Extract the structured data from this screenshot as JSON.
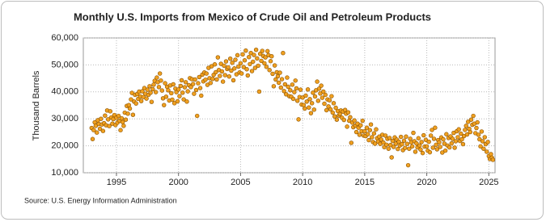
{
  "chart_data": {
    "type": "scatter",
    "title": "Monthly U.S. Imports from Mexico of Crude Oil and Petroleum Products",
    "y_label": "Thousand Barrels",
    "source": "Source: U.S. Energy Information Administration",
    "color": "#f0a020",
    "edge_color": "#8a5200",
    "grid": true,
    "xlim": [
      1992.33,
      2025.5
    ],
    "xticks": [
      1995,
      2000,
      2005,
      2010,
      2015,
      2020,
      2025
    ],
    "ylim": [
      10000,
      60000
    ],
    "yticks": [
      {
        "value": 10000,
        "label": "10,000"
      },
      {
        "value": 20000,
        "label": "20,000"
      },
      {
        "value": 30000,
        "label": "30,000"
      },
      {
        "value": 40000,
        "label": "40,000"
      },
      {
        "value": 50000,
        "label": "50,000"
      },
      {
        "value": 60000,
        "label": "60,000"
      }
    ],
    "x": [
      1993,
      1993.08,
      1993.17,
      1993.25,
      1993.33,
      1993.42,
      1993.5,
      1993.58,
      1993.67,
      1993.75,
      1993.83,
      1993.92,
      1994,
      1994.08,
      1994.17,
      1994.25,
      1994.33,
      1994.42,
      1994.5,
      1994.58,
      1994.67,
      1994.75,
      1994.83,
      1994.92,
      1995,
      1995.08,
      1995.17,
      1995.25,
      1995.33,
      1995.42,
      1995.5,
      1995.58,
      1995.67,
      1995.75,
      1995.83,
      1995.92,
      1996,
      1996.08,
      1996.17,
      1996.25,
      1996.33,
      1996.42,
      1996.5,
      1996.58,
      1996.67,
      1996.75,
      1996.83,
      1996.92,
      1997,
      1997.08,
      1997.17,
      1997.25,
      1997.33,
      1997.42,
      1997.5,
      1997.58,
      1997.67,
      1997.75,
      1997.83,
      1997.92,
      1998,
      1998.08,
      1998.17,
      1998.25,
      1998.33,
      1998.42,
      1998.5,
      1998.58,
      1998.67,
      1998.75,
      1998.83,
      1998.92,
      1999,
      1999.08,
      1999.17,
      1999.25,
      1999.33,
      1999.42,
      1999.5,
      1999.58,
      1999.67,
      1999.75,
      1999.83,
      1999.92,
      2000,
      2000.08,
      2000.17,
      2000.25,
      2000.33,
      2000.42,
      2000.5,
      2000.58,
      2000.67,
      2000.75,
      2000.83,
      2000.92,
      2001,
      2001.08,
      2001.17,
      2001.25,
      2001.33,
      2001.42,
      2001.5,
      2001.58,
      2001.67,
      2001.75,
      2001.83,
      2001.92,
      2002,
      2002.08,
      2002.17,
      2002.25,
      2002.33,
      2002.42,
      2002.5,
      2002.58,
      2002.67,
      2002.75,
      2002.83,
      2002.92,
      2003,
      2003.08,
      2003.17,
      2003.25,
      2003.33,
      2003.42,
      2003.5,
      2003.58,
      2003.67,
      2003.75,
      2003.83,
      2003.92,
      2004,
      2004.08,
      2004.17,
      2004.25,
      2004.33,
      2004.42,
      2004.5,
      2004.58,
      2004.67,
      2004.75,
      2004.83,
      2004.92,
      2005,
      2005.08,
      2005.17,
      2005.25,
      2005.33,
      2005.42,
      2005.5,
      2005.58,
      2005.67,
      2005.75,
      2005.83,
      2005.92,
      2006,
      2006.08,
      2006.17,
      2006.25,
      2006.33,
      2006.42,
      2006.5,
      2006.58,
      2006.67,
      2006.75,
      2006.83,
      2006.92,
      2007,
      2007.08,
      2007.17,
      2007.25,
      2007.33,
      2007.42,
      2007.5,
      2007.58,
      2007.67,
      2007.75,
      2007.83,
      2007.92,
      2008,
      2008.08,
      2008.17,
      2008.25,
      2008.33,
      2008.42,
      2008.5,
      2008.58,
      2008.67,
      2008.75,
      2008.83,
      2008.92,
      2009,
      2009.08,
      2009.17,
      2009.25,
      2009.33,
      2009.42,
      2009.5,
      2009.58,
      2009.67,
      2009.75,
      2009.83,
      2009.92,
      2010,
      2010.08,
      2010.17,
      2010.25,
      2010.33,
      2010.42,
      2010.5,
      2010.58,
      2010.67,
      2010.75,
      2010.83,
      2010.92,
      2011,
      2011.08,
      2011.17,
      2011.25,
      2011.33,
      2011.42,
      2011.5,
      2011.58,
      2011.67,
      2011.75,
      2011.83,
      2011.92,
      2012,
      2012.08,
      2012.17,
      2012.25,
      2012.33,
      2012.42,
      2012.5,
      2012.58,
      2012.67,
      2012.75,
      2012.83,
      2012.92,
      2013,
      2013.08,
      2013.17,
      2013.25,
      2013.33,
      2013.42,
      2013.5,
      2013.58,
      2013.67,
      2013.75,
      2013.83,
      2013.92,
      2014,
      2014.08,
      2014.17,
      2014.25,
      2014.33,
      2014.42,
      2014.5,
      2014.58,
      2014.67,
      2014.75,
      2014.83,
      2014.92,
      2015,
      2015.08,
      2015.17,
      2015.25,
      2015.33,
      2015.42,
      2015.5,
      2015.58,
      2015.67,
      2015.75,
      2015.83,
      2015.92,
      2016,
      2016.08,
      2016.17,
      2016.25,
      2016.33,
      2016.42,
      2016.5,
      2016.58,
      2016.67,
      2016.75,
      2016.83,
      2016.92,
      2017,
      2017.08,
      2017.17,
      2017.25,
      2017.33,
      2017.42,
      2017.5,
      2017.58,
      2017.67,
      2017.75,
      2017.83,
      2017.92,
      2018,
      2018.08,
      2018.17,
      2018.25,
      2018.33,
      2018.42,
      2018.5,
      2018.58,
      2018.67,
      2018.75,
      2018.83,
      2018.92,
      2019,
      2019.08,
      2019.17,
      2019.25,
      2019.33,
      2019.42,
      2019.5,
      2019.58,
      2019.67,
      2019.75,
      2019.83,
      2019.92,
      2020,
      2020.08,
      2020.17,
      2020.25,
      2020.33,
      2020.42,
      2020.5,
      2020.58,
      2020.67,
      2020.75,
      2020.83,
      2020.92,
      2021,
      2021.08,
      2021.17,
      2021.25,
      2021.33,
      2021.42,
      2021.5,
      2021.58,
      2021.67,
      2021.75,
      2021.83,
      2021.92,
      2022,
      2022.08,
      2022.17,
      2022.25,
      2022.33,
      2022.42,
      2022.5,
      2022.58,
      2022.67,
      2022.75,
      2022.83,
      2022.92,
      2023,
      2023.08,
      2023.17,
      2023.25,
      2023.33,
      2023.42,
      2023.5,
      2023.58,
      2023.67,
      2023.75,
      2023.83,
      2023.92,
      2024,
      2024.08,
      2024.17,
      2024.25,
      2024.33,
      2024.42,
      2024.5,
      2024.58,
      2024.67,
      2024.75,
      2024.83,
      2024.92,
      2025,
      2025.08,
      2025.17,
      2025.25,
      2025.33
    ],
    "values": [
      26600,
      22500,
      25800,
      28700,
      27400,
      24900,
      29500,
      28100,
      26300,
      30000,
      27900,
      25500,
      28400,
      31200,
      27600,
      33100,
      29800,
      27300,
      32800,
      30500,
      28200,
      29900,
      31400,
      27700,
      30400,
      28600,
      31100,
      29300,
      25800,
      30200,
      28800,
      27400,
      32300,
      29700,
      34800,
      31900,
      35100,
      33800,
      37200,
      39600,
      31500,
      36400,
      38900,
      35700,
      39200,
      37400,
      40100,
      38300,
      36600,
      40200,
      38100,
      41400,
      39300,
      37500,
      40800,
      38900,
      42100,
      39700,
      36300,
      41000,
      42700,
      44100,
      39900,
      45300,
      43600,
      41800,
      46800,
      44200,
      40500,
      37600,
      35100,
      43200,
      38200,
      41900,
      40600,
      36800,
      42400,
      39500,
      37100,
      42800,
      35800,
      41200,
      39900,
      36500,
      40900,
      38400,
      42200,
      44300,
      39700,
      37200,
      41700,
      43600,
      36400,
      40200,
      42500,
      45100,
      41800,
      44700,
      42900,
      39300,
      44600,
      40700,
      31100,
      43200,
      45500,
      41400,
      38600,
      46400,
      43900,
      47200,
      44500,
      46800,
      42600,
      48900,
      45100,
      43300,
      49500,
      44800,
      46300,
      50200,
      47300,
      44600,
      52800,
      48100,
      45900,
      50400,
      47600,
      43800,
      49700,
      46200,
      51300,
      48500,
      49100,
      45700,
      52300,
      47900,
      50800,
      44300,
      48700,
      51900,
      46500,
      53600,
      49400,
      47200,
      50600,
      46800,
      53900,
      49200,
      51700,
      55300,
      48400,
      46100,
      52900,
      50300,
      54400,
      47700,
      51200,
      53700,
      48900,
      55600,
      52400,
      49700,
      40100,
      54100,
      51500,
      55200,
      53300,
      50600,
      52800,
      49300,
      55100,
      53600,
      48100,
      51400,
      53200,
      46700,
      42100,
      49800,
      44600,
      47300,
      45800,
      43400,
      47100,
      41600,
      44700,
      54400,
      40300,
      42800,
      39100,
      45300,
      41900,
      38400,
      40600,
      38200,
      42700,
      37400,
      39900,
      44200,
      41300,
      36700,
      29800,
      38100,
      40800,
      35300,
      37900,
      35100,
      33800,
      38600,
      36400,
      40900,
      34200,
      37300,
      32100,
      35800,
      39700,
      33400,
      38300,
      40600,
      43800,
      36700,
      41200,
      39400,
      42300,
      37800,
      40100,
      35600,
      38900,
      33200,
      37200,
      34600,
      36900,
      33500,
      38400,
      32300,
      35800,
      30900,
      34100,
      29700,
      32900,
      31200,
      31800,
      33100,
      30400,
      32700,
      29600,
      33300,
      31900,
      27100,
      32400,
      29300,
      30600,
      21100,
      28600,
      26900,
      29400,
      27500,
      25100,
      28200,
      26700,
      24100,
      27600,
      25400,
      29300,
      23800,
      25400,
      23600,
      26700,
      24300,
      22100,
      25800,
      27900,
      23200,
      21400,
      24600,
      20800,
      26100,
      22800,
      21600,
      23400,
      20700,
      22300,
      24100,
      21200,
      19500,
      23800,
      20400,
      22600,
      18900,
      22900,
      20300,
      15700,
      21800,
      19600,
      23100,
      20800,
      22300,
      18800,
      21500,
      20100,
      23300,
      20600,
      18400,
      21900,
      19200,
      23400,
      20700,
      12800,
      18900,
      22600,
      21300,
      19800,
      24800,
      21700,
      17800,
      20900,
      19400,
      22800,
      20100,
      18600,
      21400,
      17300,
      23900,
      19700,
      22200,
      19800,
      18200,
      21500,
      17600,
      23800,
      25900,
      19300,
      22600,
      26700,
      20400,
      18700,
      22100,
      21300,
      19600,
      23100,
      17500,
      22400,
      20800,
      18200,
      24300,
      20100,
      22900,
      19400,
      23500,
      20900,
      22600,
      24800,
      19300,
      21700,
      25400,
      23200,
      26100,
      21800,
      24500,
      22400,
      20600,
      23600,
      25900,
      27400,
      24200,
      28900,
      26300,
      25100,
      29700,
      27800,
      31100,
      28200,
      24700,
      26600,
      28700,
      24100,
      22400,
      19800,
      25300,
      21700,
      18900,
      23200,
      20600,
      17800,
      21400,
      16200,
      15100,
      16900,
      15600,
      14800
    ]
  }
}
